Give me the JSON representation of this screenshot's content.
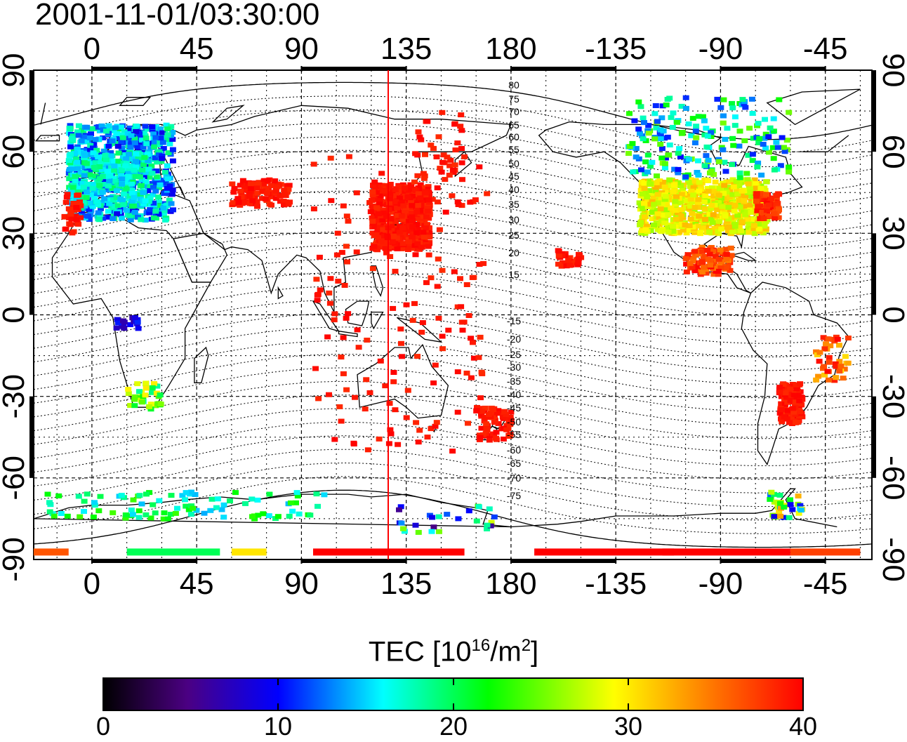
{
  "title": "2001-11-01/03:30:00",
  "map": {
    "lon_ticks_top": [
      "0",
      "45",
      "90",
      "135",
      "180",
      "-135",
      "-90",
      "-45"
    ],
    "lon_ticks_bottom": [
      "0",
      "45",
      "90",
      "135",
      "180",
      "-135",
      "-90",
      "-45"
    ],
    "lat_ticks_left": [
      "90",
      "60",
      "30",
      "0",
      "-30",
      "-60",
      "-90"
    ],
    "lat_ticks_right": [
      "90",
      "60",
      "30",
      "0",
      "-30",
      "-60",
      "-90"
    ],
    "magnetic_lat_labels": [
      "80",
      "75",
      "70",
      "65",
      "60",
      "55",
      "50",
      "45",
      "40",
      "35",
      "30",
      "25",
      "20",
      "15",
      "-15",
      "-20",
      "-25",
      "-30",
      "-35",
      "-40",
      "-45",
      "-50",
      "-55",
      "-60",
      "-65",
      "-70",
      "-75"
    ],
    "subsolar_longitude_line_color": "#ff0000",
    "grid": "dotted"
  },
  "colorbar": {
    "title_prefix": "TEC  [10",
    "title_exp": "16",
    "title_mid": "/m",
    "title_exp2": "2",
    "title_suffix": "]",
    "ticks": [
      "0",
      "10",
      "20",
      "30",
      "40"
    ],
    "colors": [
      "#000000",
      "#4b0082",
      "#0000ff",
      "#00ffff",
      "#00ff00",
      "#ffff00",
      "#ff8000",
      "#ff0000"
    ]
  }
}
